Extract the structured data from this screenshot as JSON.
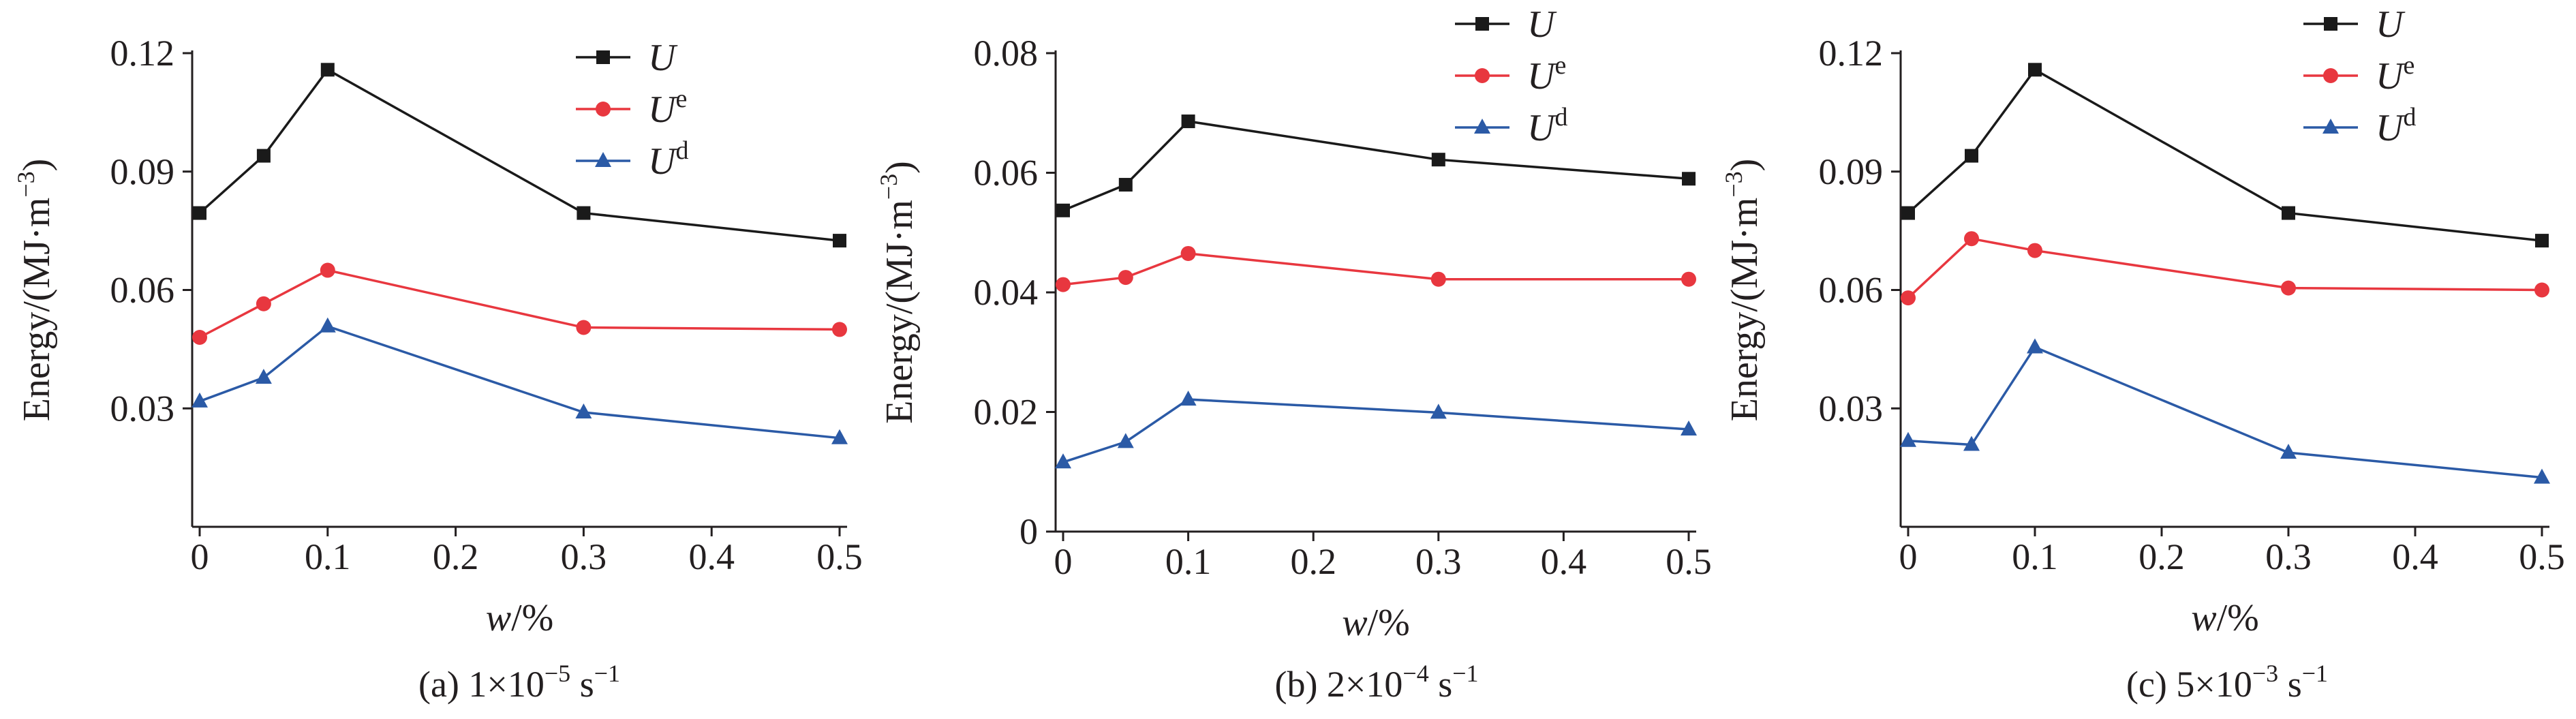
{
  "colors": {
    "U": "#1a1a1a",
    "Ue": "#e8373f",
    "Ud": "#2b5aa6",
    "axis": "#231f20"
  },
  "chart_data": [
    {
      "type": "line",
      "caption": "(a) 1×10",
      "caption_exp": "−5",
      "caption_unit": " s",
      "caption_unit_exp": "−1",
      "xlabel": "w",
      "xlabel_suffix": "/%",
      "ylabel": "Energy/(MJ·m",
      "ylabel_exp": "−3",
      "ylabel_suffix": ")",
      "xlim": [
        0,
        0.5
      ],
      "ylim": [
        0,
        0.12
      ],
      "xticks": [
        0,
        0.1,
        0.2,
        0.3,
        0.4,
        0.5
      ],
      "xtick_labels": [
        "0",
        "0.1",
        "0.2",
        "0.3",
        "0.4",
        "0.5"
      ],
      "yticks": [
        0.03,
        0.06,
        0.09,
        0.12
      ],
      "ytick_labels": [
        "0.03",
        "0.06",
        "0.09",
        "0.12"
      ],
      "x": [
        0,
        0.05,
        0.1,
        0.3,
        0.5
      ],
      "series": [
        {
          "name": "U",
          "sup": "",
          "marker": "square",
          "color_key": "U",
          "values": [
            0.0795,
            0.094,
            0.1158,
            0.0795,
            0.0725
          ]
        },
        {
          "name": "U",
          "sup": "e",
          "marker": "circle",
          "color_key": "Ue",
          "values": [
            0.048,
            0.0565,
            0.065,
            0.0505,
            0.05
          ]
        },
        {
          "name": "U",
          "sup": "d",
          "marker": "triangle",
          "color_key": "Ud",
          "values": [
            0.0318,
            0.0378,
            0.0508,
            0.029,
            0.0225
          ]
        }
      ],
      "legend": "top-right"
    },
    {
      "type": "line",
      "caption": "(b) 2×10",
      "caption_exp": "−4",
      "caption_unit": " s",
      "caption_unit_exp": "−1",
      "xlabel": "w",
      "xlabel_suffix": "/%",
      "ylabel": "Energy/(MJ·m",
      "ylabel_exp": "−3",
      "ylabel_suffix": ")",
      "xlim": [
        0,
        0.5
      ],
      "ylim": [
        0,
        0.08
      ],
      "xticks": [
        0,
        0.1,
        0.2,
        0.3,
        0.4,
        0.5
      ],
      "xtick_labels": [
        "0",
        "0.1",
        "0.2",
        "0.3",
        "0.4",
        "0.5"
      ],
      "yticks": [
        0,
        0.02,
        0.04,
        0.06,
        0.08
      ],
      "ytick_labels": [
        "0",
        "0.02",
        "0.04",
        "0.06",
        "0.08"
      ],
      "x": [
        0,
        0.05,
        0.1,
        0.3,
        0.5
      ],
      "series": [
        {
          "name": "U",
          "sup": "",
          "marker": "square",
          "color_key": "U",
          "values": [
            0.0537,
            0.058,
            0.0686,
            0.0622,
            0.059
          ]
        },
        {
          "name": "U",
          "sup": "e",
          "marker": "circle",
          "color_key": "Ue",
          "values": [
            0.0413,
            0.0425,
            0.0465,
            0.0422,
            0.0422
          ]
        },
        {
          "name": "U",
          "sup": "d",
          "marker": "triangle",
          "color_key": "Ud",
          "values": [
            0.0116,
            0.015,
            0.0221,
            0.0199,
            0.0171
          ]
        }
      ],
      "legend": "top-right"
    },
    {
      "type": "line",
      "caption": "(c) 5×10",
      "caption_exp": "−3",
      "caption_unit": " s",
      "caption_unit_exp": "−1",
      "xlabel": "w",
      "xlabel_suffix": "/%",
      "ylabel": "Energy/(MJ·m",
      "ylabel_exp": "−3",
      "ylabel_suffix": ")",
      "xlim": [
        0,
        0.5
      ],
      "ylim": [
        0,
        0.12
      ],
      "xticks": [
        0,
        0.1,
        0.2,
        0.3,
        0.4,
        0.5
      ],
      "xtick_labels": [
        "0",
        "0.1",
        "0.2",
        "0.3",
        "0.4",
        "0.5"
      ],
      "yticks": [
        0.03,
        0.06,
        0.09,
        0.12
      ],
      "ytick_labels": [
        "0.03",
        "0.06",
        "0.09",
        "0.12"
      ],
      "x": [
        0,
        0.05,
        0.1,
        0.3,
        0.5
      ],
      "series": [
        {
          "name": "U",
          "sup": "",
          "marker": "square",
          "color_key": "U",
          "values": [
            0.0795,
            0.094,
            0.1158,
            0.0795,
            0.0725
          ]
        },
        {
          "name": "U",
          "sup": "e",
          "marker": "circle",
          "color_key": "Ue",
          "values": [
            0.058,
            0.073,
            0.07,
            0.0605,
            0.06
          ]
        },
        {
          "name": "U",
          "sup": "d",
          "marker": "triangle",
          "color_key": "Ud",
          "values": [
            0.0218,
            0.0208,
            0.0455,
            0.0188,
            0.0125
          ]
        }
      ],
      "legend": "top-right"
    }
  ]
}
